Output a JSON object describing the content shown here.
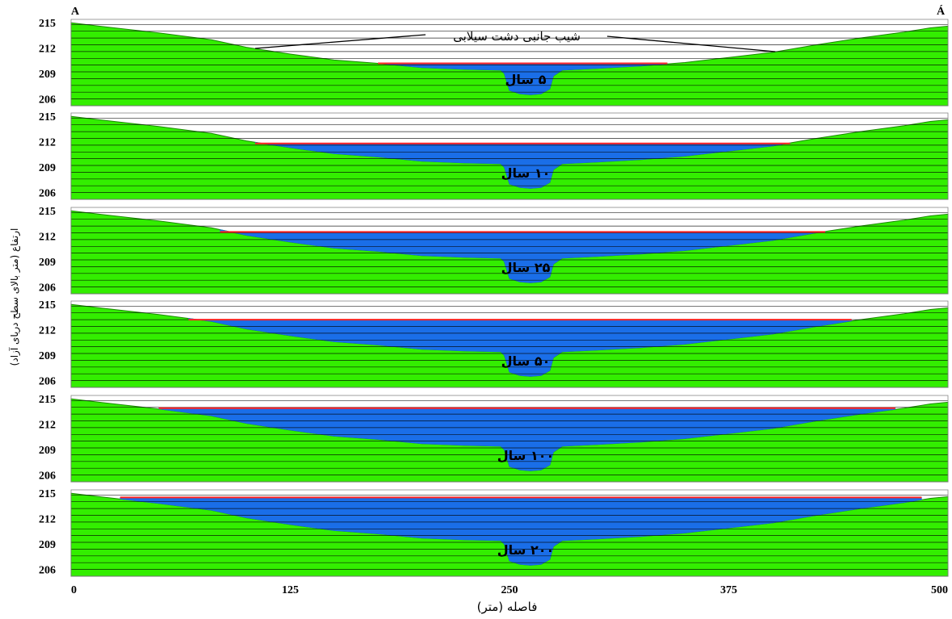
{
  "chart_data": {
    "type": "area",
    "corner_labels": {
      "left": "A",
      "right": "Á"
    },
    "annotation": "شیب جانبی دشت سیلابی",
    "xlabel": "فاصله (متر)",
    "ylabel": "ارتفاع (متر بالای سطح دریای آزاد)",
    "xlim": [
      0,
      500
    ],
    "ylim": [
      205.2,
      215.4
    ],
    "x_ticks": [
      0,
      125,
      250,
      375,
      500
    ],
    "x_tick_labels": [
      "0",
      "125",
      "250",
      "375",
      "500"
    ],
    "y_ticks": [
      215,
      212,
      209,
      206
    ],
    "y_tick_labels": [
      "215",
      "212",
      "209",
      "206"
    ],
    "grid": "horizontal",
    "colors": {
      "ground": "#33ee00",
      "water": "#1a6ee8",
      "water_surface": "#ff2222",
      "grid": "#000000"
    },
    "terrain": {
      "x": [
        0,
        20,
        50,
        80,
        100,
        125,
        150,
        175,
        200,
        225,
        245,
        247,
        250,
        256,
        262,
        268,
        273,
        275,
        280,
        300,
        325,
        350,
        375,
        400,
        425,
        450,
        475,
        490,
        500
      ],
      "y": [
        215.0,
        214.5,
        213.8,
        213.0,
        212.1,
        211.3,
        210.6,
        210.2,
        209.7,
        209.5,
        209.4,
        209.0,
        207.0,
        206.6,
        206.5,
        206.6,
        207.2,
        208.7,
        209.4,
        209.6,
        209.9,
        210.3,
        210.9,
        211.5,
        212.4,
        213.2,
        213.9,
        214.4,
        214.6
      ]
    },
    "panels": [
      {
        "label": "۵ سال",
        "return_period_years": 5,
        "water_level": 210.2,
        "extent": [
          175,
          340
        ]
      },
      {
        "label": "۱۰ سال",
        "return_period_years": 10,
        "water_level": 211.8,
        "extent": [
          105,
          410
        ]
      },
      {
        "label": "۲۵ سال",
        "return_period_years": 25,
        "water_level": 212.5,
        "extent": [
          85,
          430
        ]
      },
      {
        "label": "۵۰ سال",
        "return_period_years": 50,
        "water_level": 213.2,
        "extent": [
          67,
          445
        ]
      },
      {
        "label": "۱۰۰ سال",
        "return_period_years": 100,
        "water_level": 213.9,
        "extent": [
          50,
          470
        ]
      },
      {
        "label": "۲۰۰ سال",
        "return_period_years": 200,
        "water_level": 214.5,
        "extent": [
          28,
          485
        ]
      }
    ]
  }
}
